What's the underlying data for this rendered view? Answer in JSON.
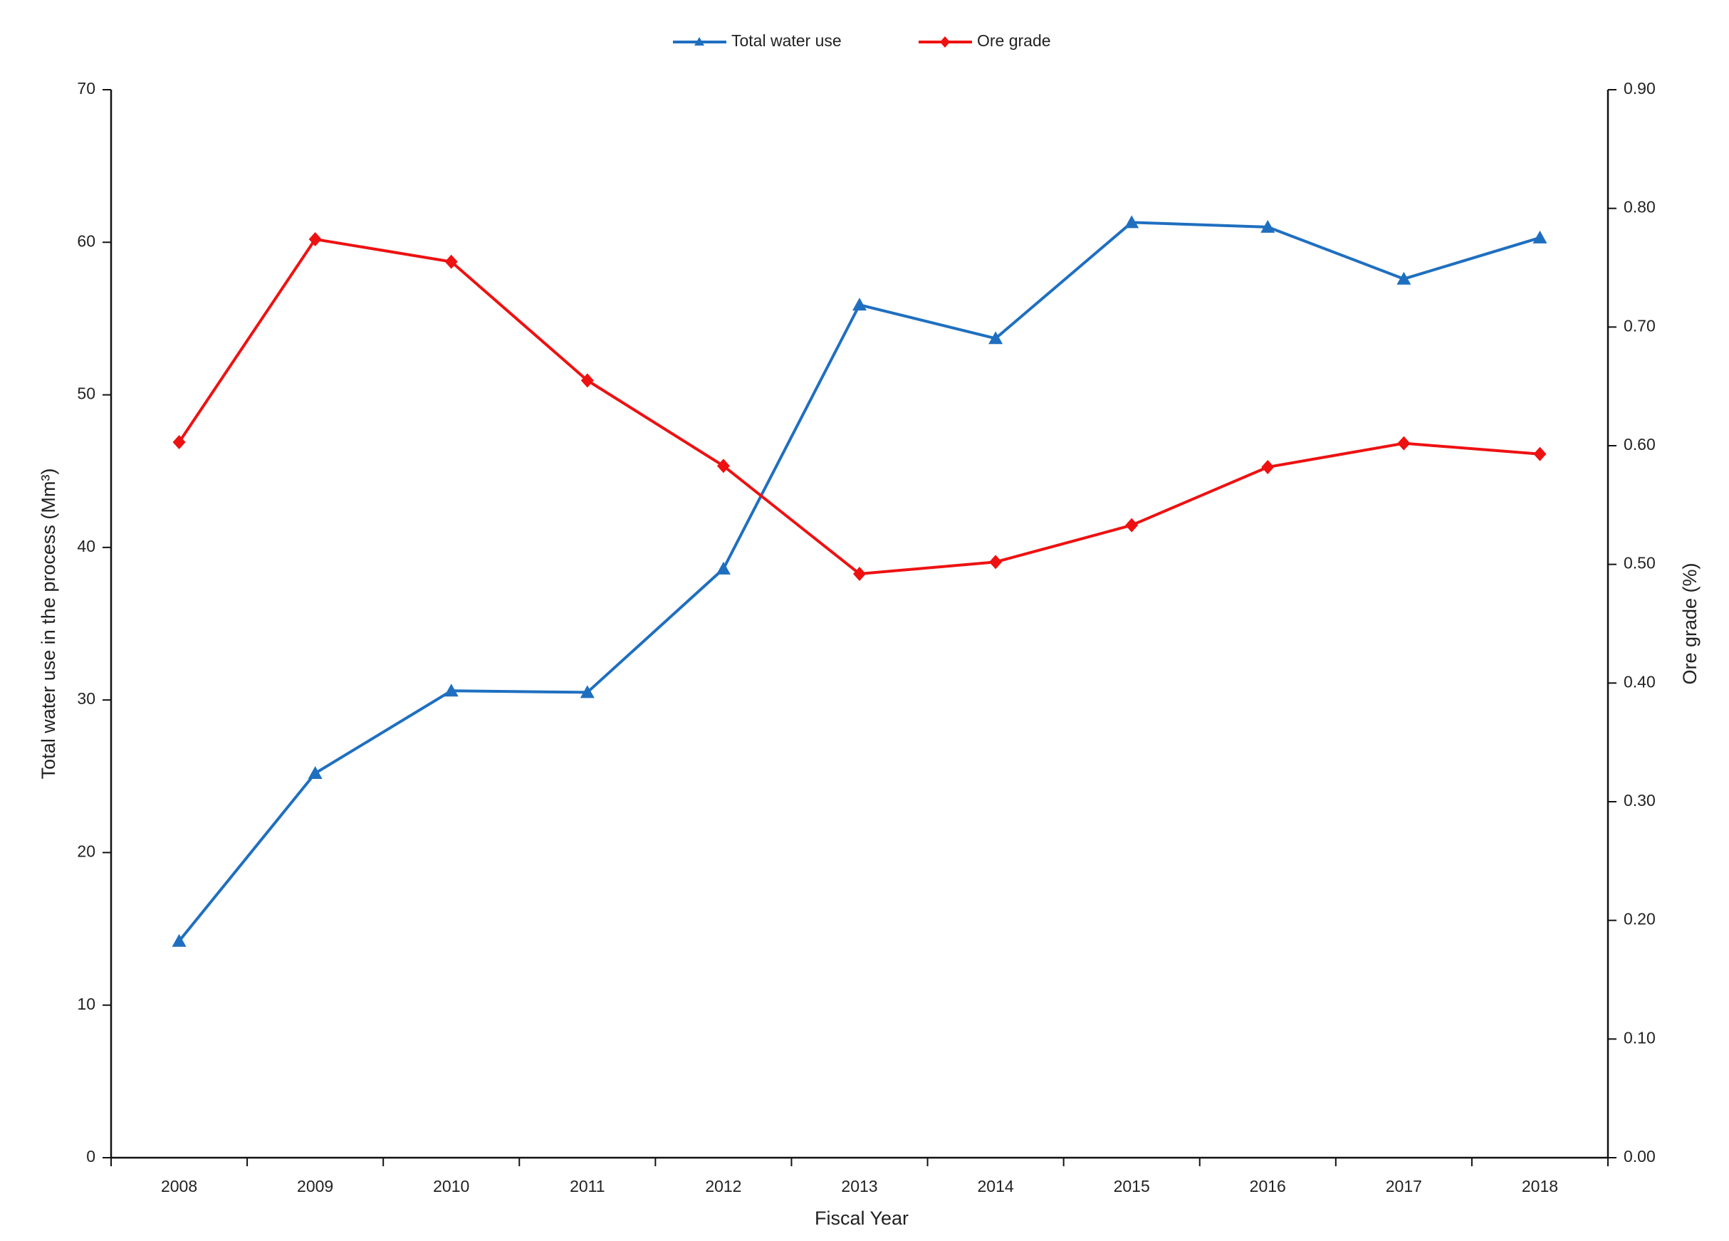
{
  "chart_data": {
    "type": "line",
    "x_label": "Fiscal Year",
    "y_label": "Total water use in the process (Mm³)",
    "y2_label": "Ore grade (%)",
    "categories": [
      "2008",
      "2009",
      "2010",
      "2011",
      "2012",
      "2013",
      "2014",
      "2015",
      "2016",
      "2017",
      "2018"
    ],
    "series": [
      {
        "name": "Total water use",
        "color": "#1f6fc0",
        "marker": "triangle",
        "values": [
          14.2,
          25.2,
          30.6,
          30.5,
          38.6,
          55.9,
          53.7,
          61.3,
          61.0,
          57.6,
          60.3
        ]
      },
      {
        "name": "Ore grade",
        "color": "#ee1111",
        "marker": "diamond",
        "axis": "y2",
        "values": [
          0.603,
          0.774,
          0.755,
          0.655,
          0.583,
          0.492,
          0.502,
          0.533,
          0.582,
          0.602,
          0.593
        ]
      }
    ],
    "ylim": [
      0,
      70
    ],
    "yticks": [
      0,
      10,
      20,
      30,
      40,
      50,
      60,
      70
    ],
    "y2lim": [
      0,
      0.9
    ],
    "y2ticks": [
      {
        "value": 0,
        "label": "0.00"
      },
      {
        "value": 0.1,
        "label": "0.10"
      },
      {
        "value": 0.2,
        "label": "0.20"
      },
      {
        "value": 0.3,
        "label": "0.30"
      },
      {
        "value": 0.4,
        "label": "0.40"
      },
      {
        "value": 0.5,
        "label": "0.50"
      },
      {
        "value": 0.6,
        "label": "0.60"
      },
      {
        "value": 0.7,
        "label": "0.70"
      },
      {
        "value": 0.8,
        "label": "0.80"
      },
      {
        "value": 0.9,
        "label": "0.90"
      }
    ],
    "grid": false,
    "legend": "top"
  }
}
